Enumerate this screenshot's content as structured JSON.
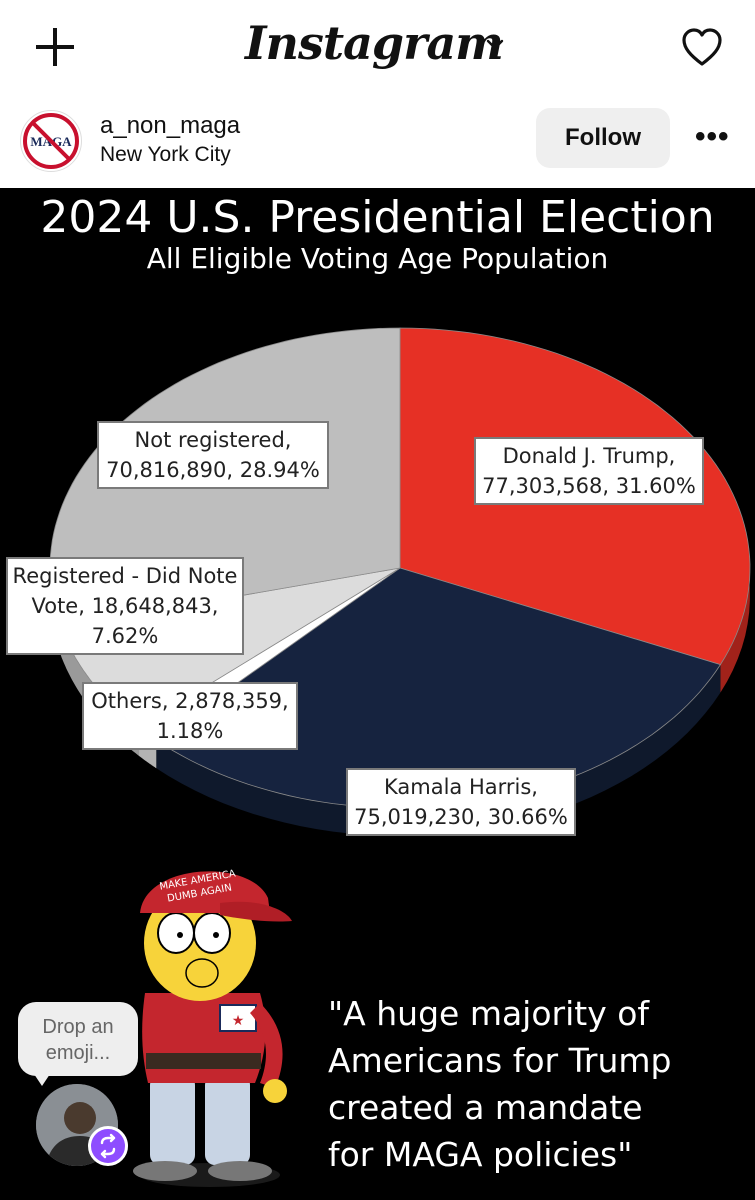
{
  "app": {
    "title": "Instagram"
  },
  "post": {
    "username": "a_non_maga",
    "location": "New York City",
    "follow_label": "Follow",
    "more_label": "•••",
    "avatar_badge_text": "MAGA"
  },
  "chart_data": {
    "type": "pie",
    "title": "2024 U.S. Presidential Election",
    "subtitle": "All Eligible Voting Age Population",
    "slices": [
      {
        "label": "Donald J. Trump",
        "value": 77303568,
        "percent": 31.6,
        "color": "#e63025"
      },
      {
        "label": "Kamala Harris",
        "value": 75019230,
        "percent": 30.66,
        "color": "#16233f"
      },
      {
        "label": "Others",
        "value": 2878359,
        "percent": 1.18,
        "color": "#ffffff"
      },
      {
        "label": "Registered - Did Note Vote",
        "value": 18648843,
        "percent": 7.62,
        "color": "#dcdcdc"
      },
      {
        "label": "Not registered",
        "value": 70816890,
        "percent": 28.94,
        "color": "#bebebe"
      }
    ],
    "labels": {
      "trump_1": "Donald J. Trump,",
      "trump_2": "77,303,568, 31.60%",
      "harris_1": "Kamala Harris,",
      "harris_2": "75,019,230, 30.66%",
      "others_1": "Others, 2,878,359,",
      "others_2": "1.18%",
      "reg_1": "Registered - Did Note",
      "reg_2": "Vote, 18,648,843,",
      "reg_3": "7.62%",
      "notreg_1": "Not registered,",
      "notreg_2": "70,816,890, 28.94%"
    }
  },
  "cartoon": {
    "hat_text_1": "MAKE AMERICA",
    "hat_text_2": "DUMB AGAIN"
  },
  "quote": {
    "line1": "\"A huge majority of",
    "line2": "Americans for Trump",
    "line3": "created a mandate",
    "line4": "for MAGA policies\""
  },
  "reaction": {
    "line1": "Drop an",
    "line2": "emoji..."
  }
}
